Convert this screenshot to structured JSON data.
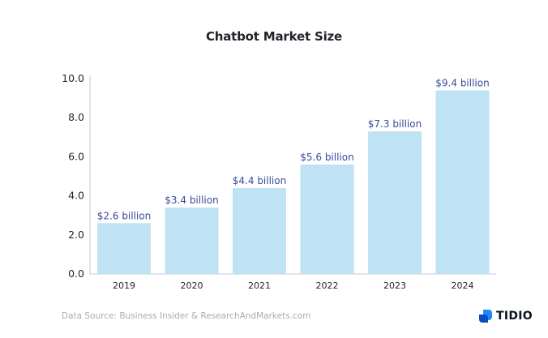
{
  "chart_data": {
    "type": "bar",
    "title": "Chatbot Market Size",
    "categories": [
      "2019",
      "2020",
      "2021",
      "2022",
      "2023",
      "2024"
    ],
    "values": [
      2.6,
      3.4,
      4.4,
      5.6,
      7.3,
      9.4
    ],
    "data_labels": [
      "$2.6 billion",
      "$3.4 billion",
      "$4.4 billion",
      "$5.6 billion",
      "$7.3 billion",
      "$9.4 billion"
    ],
    "ylim": [
      0,
      10
    ],
    "yticks": [
      "0.0",
      "2.0",
      "4.0",
      "6.0",
      "8.0",
      "10.0"
    ],
    "xlabel": "",
    "ylabel": "",
    "grid": false,
    "bar_color": "#bfe3f4",
    "label_color": "#3a4a9b"
  },
  "footer": {
    "source": "Data Source: Business Insider & ResearchAndMarkets.com",
    "brand": "TIDIO",
    "brand_color": "#1a8cff"
  }
}
